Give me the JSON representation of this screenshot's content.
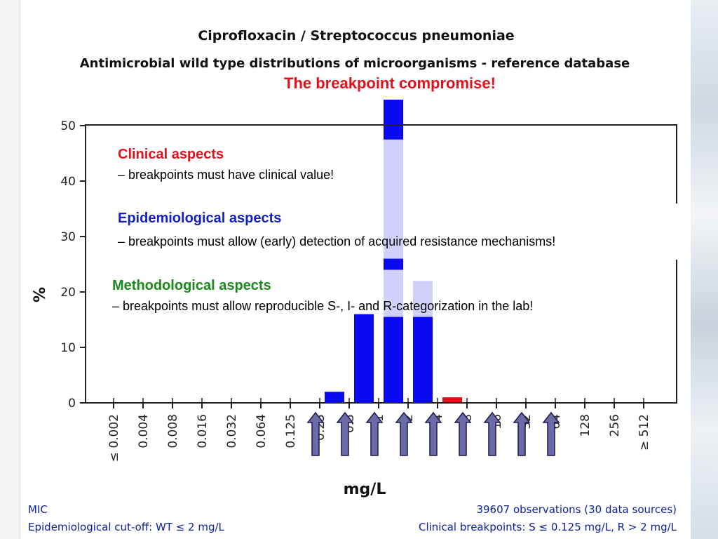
{
  "slide": {
    "title": "Ciprofloxacin / Streptococcus pneumoniae",
    "subtitle": "Antimicrobial wild type distributions of microorganisms - reference database",
    "overlay_title": "The breakpoint compromise!"
  },
  "aspects": [
    {
      "heading": "Clinical aspects",
      "text": "– breakpoints must  have clinical value!",
      "color": "#e0111b"
    },
    {
      "heading": "Epidemiological aspects",
      "text": "– breakpoints must allow (early) detection of acquired resistance mechanisms!",
      "color": "#1420c8"
    },
    {
      "heading": "Methodological aspects",
      "text": "– breakpoints must allow reproducible S-, I- and R-categorization in the lab!",
      "color": "#1a8a1a"
    }
  ],
  "footer": {
    "mic": "MIC",
    "cutoff": "Epidemiological cut-off: WT ≤ 2 mg/L",
    "observations": "39607 observations (30 data sources)",
    "breakpoints": "Clinical breakpoints: S ≤ 0.125 mg/L,  R > 2 mg/L"
  },
  "chart_data": {
    "type": "bar",
    "xlabel": "mg/L",
    "ylabel": "%",
    "ylim": [
      0,
      50
    ],
    "yticks": [
      0,
      10,
      20,
      30,
      40,
      50
    ],
    "categories": [
      "≤ 0.002",
      "0.004",
      "0.008",
      "0.016",
      "0.032",
      "0.064",
      "0.125",
      "0.25",
      "0.5",
      "1",
      "2",
      "4",
      "8",
      "16",
      "32",
      "64",
      "128",
      "256",
      "≥ 512"
    ],
    "values": [
      0,
      0,
      0,
      0,
      0,
      0,
      0,
      2,
      16,
      55,
      22,
      1,
      0,
      0,
      0,
      0,
      0,
      0,
      0
    ],
    "colors": {
      "wild_type": "#0a0af0",
      "non_wild_type": "#e0111b",
      "overlay": "#d0d0fa"
    },
    "non_wild_type_categories": [
      "4"
    ],
    "arrow_color": "#6d6aa8",
    "arrow_categories": [
      "0.125",
      "0.25",
      "0.5",
      "1",
      "2",
      "4",
      "8",
      "16",
      "32"
    ]
  }
}
